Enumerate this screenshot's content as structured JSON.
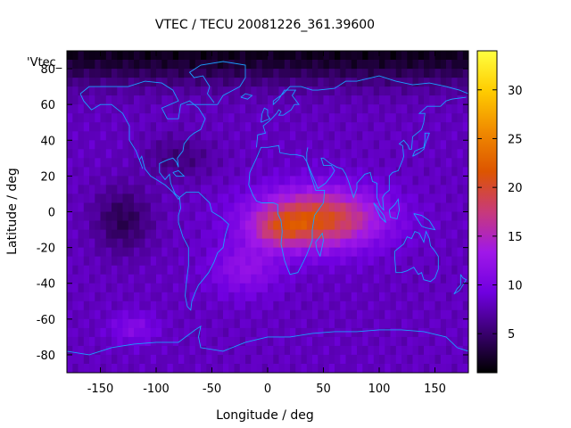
{
  "chart_data": {
    "type": "heatmap",
    "title": "VTEC / TECU 20081226_361.39600",
    "xlabel": "Longitude / deg",
    "ylabel": "Latitude / deg",
    "stray_label": "'Vtec_",
    "xlim": [
      -180,
      180
    ],
    "ylim": [
      -90,
      90
    ],
    "xticks": [
      -150,
      -100,
      -50,
      0,
      50,
      100,
      150
    ],
    "yticks": [
      -80,
      -60,
      -40,
      -20,
      0,
      20,
      40,
      60,
      80
    ],
    "colorbar": {
      "range": [
        1,
        34
      ],
      "ticks": [
        5,
        10,
        15,
        20,
        25,
        30
      ],
      "palette": [
        "#000000",
        "#3a0070",
        "#7000e0",
        "#a018e8",
        "#c83a7a",
        "#dd5500",
        "#f08a00",
        "#ffcc00",
        "#ffff40"
      ]
    },
    "field": {
      "background_level": 8,
      "features": [
        {
          "name": "equatorial anomaly core",
          "lon": 10,
          "lat": -6,
          "peak": 22
        },
        {
          "name": "equatorial anomaly Indian Ocean",
          "lon": 85,
          "lat": -8,
          "peak": 21
        },
        {
          "name": "south Atlantic enhancement",
          "lon": -20,
          "lat": -30,
          "peak": 14
        },
        {
          "name": "south Pacific patch",
          "lon": -120,
          "lat": -65,
          "peak": 11
        },
        {
          "name": "north polar depletion",
          "lon": 0,
          "lat": 85,
          "peak": 2
        },
        {
          "name": "east Pacific depletion",
          "lon": -130,
          "lat": -5,
          "peak": 4
        }
      ]
    }
  }
}
